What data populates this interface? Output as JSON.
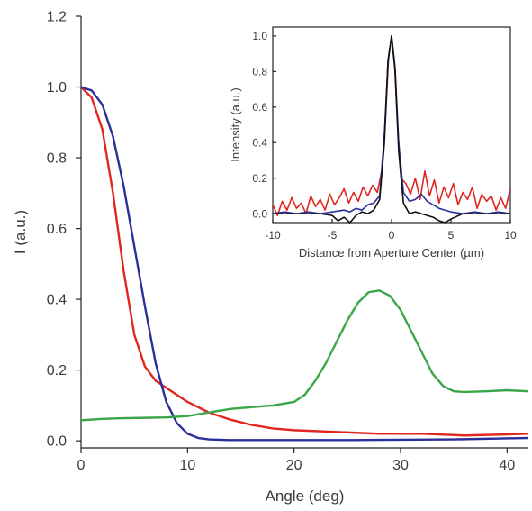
{
  "chart_data": [
    {
      "type": "line",
      "title": "",
      "xlabel": "Angle (deg)",
      "ylabel": "I (a.u.)",
      "xlim": [
        0,
        42
      ],
      "ylim": [
        -0.02,
        1.2
      ],
      "xticks": [
        "0",
        "10",
        "20",
        "30",
        "40"
      ],
      "xtick_values": [
        0,
        10,
        20,
        30,
        40
      ],
      "yticks": [
        "0.0",
        "0.2",
        "0.4",
        "0.6",
        "0.8",
        "1.0",
        "1.2"
      ],
      "ytick_values": [
        0,
        0.2,
        0.4,
        0.6,
        0.8,
        1.0,
        1.2
      ],
      "grid": false,
      "series": [
        {
          "color": "#e0261f",
          "x": [
            0,
            1,
            2,
            3,
            4,
            5,
            6,
            7,
            8,
            9,
            10,
            12,
            14,
            16,
            18,
            20,
            24,
            28,
            32,
            36,
            40,
            42
          ],
          "y": [
            1.0,
            0.97,
            0.88,
            0.7,
            0.48,
            0.3,
            0.21,
            0.17,
            0.15,
            0.13,
            0.11,
            0.08,
            0.06,
            0.045,
            0.035,
            0.03,
            0.025,
            0.02,
            0.02,
            0.015,
            0.018,
            0.02
          ]
        },
        {
          "color": "#2b2f9c",
          "x": [
            0,
            1,
            2,
            3,
            4,
            5,
            6,
            7,
            8,
            9,
            10,
            11,
            12,
            14,
            16,
            20,
            25,
            30,
            35,
            40,
            42
          ],
          "y": [
            1.0,
            0.99,
            0.95,
            0.86,
            0.72,
            0.55,
            0.38,
            0.22,
            0.11,
            0.05,
            0.02,
            0.008,
            0.004,
            0.002,
            0.002,
            0.002,
            0.002,
            0.003,
            0.004,
            0.007,
            0.008
          ]
        },
        {
          "color": "#3aa648",
          "x": [
            0,
            2,
            4,
            6,
            8,
            10,
            12,
            14,
            16,
            18,
            20,
            21,
            22,
            23,
            24,
            25,
            26,
            27,
            28,
            29,
            30,
            31,
            32,
            33,
            34,
            35,
            36,
            38,
            40,
            42
          ],
          "y": [
            0.058,
            0.062,
            0.064,
            0.065,
            0.066,
            0.07,
            0.08,
            0.09,
            0.095,
            0.1,
            0.11,
            0.13,
            0.17,
            0.22,
            0.28,
            0.34,
            0.39,
            0.42,
            0.425,
            0.41,
            0.37,
            0.31,
            0.25,
            0.19,
            0.155,
            0.14,
            0.138,
            0.14,
            0.143,
            0.14
          ]
        }
      ]
    },
    {
      "type": "line",
      "title": "",
      "xlabel": "Distance from Aperture Center (µm)",
      "ylabel": "Intensity (a.u.)",
      "xlim": [
        -10,
        10
      ],
      "ylim": [
        -0.05,
        1.05
      ],
      "xticks": [
        "-10",
        "-5",
        "0",
        "5",
        "10"
      ],
      "xtick_values": [
        -10,
        -5,
        0,
        5,
        10
      ],
      "yticks": [
        "0.0",
        "0.2",
        "0.4",
        "0.6",
        "0.8",
        "1.0"
      ],
      "ytick_values": [
        0,
        0.2,
        0.4,
        0.6,
        0.8,
        1.0
      ],
      "grid": false,
      "series": [
        {
          "color": "#e0261f",
          "x": [
            -10,
            -9.6,
            -9.2,
            -8.8,
            -8.4,
            -8.0,
            -7.6,
            -7.2,
            -6.8,
            -6.4,
            -6.0,
            -5.6,
            -5.2,
            -4.8,
            -4.4,
            -4.0,
            -3.6,
            -3.2,
            -2.8,
            -2.4,
            -2.0,
            -1.6,
            -1.2,
            -0.8,
            -0.5,
            -0.25,
            0,
            0.25,
            0.5,
            0.8,
            1.2,
            1.6,
            2.0,
            2.4,
            2.8,
            3.2,
            3.6,
            4.0,
            4.4,
            4.8,
            5.2,
            5.6,
            6.0,
            6.4,
            6.8,
            7.2,
            7.6,
            8.0,
            8.4,
            8.8,
            9.2,
            9.6,
            10
          ],
          "y": [
            0.05,
            -0.01,
            0.07,
            0.02,
            0.09,
            0.03,
            0.06,
            0.0,
            0.1,
            0.04,
            0.08,
            0.02,
            0.11,
            0.05,
            0.09,
            0.14,
            0.06,
            0.12,
            0.07,
            0.15,
            0.1,
            0.16,
            0.12,
            0.25,
            0.55,
            0.88,
            1.0,
            0.85,
            0.5,
            0.2,
            0.17,
            0.11,
            0.2,
            0.08,
            0.24,
            0.1,
            0.19,
            0.06,
            0.15,
            0.09,
            0.17,
            0.05,
            0.12,
            0.08,
            0.15,
            0.03,
            0.11,
            0.07,
            0.1,
            0.02,
            0.09,
            0.03,
            0.14
          ]
        },
        {
          "color": "#2b2f9c",
          "x": [
            -10,
            -9,
            -8,
            -7,
            -6,
            -5,
            -4,
            -3.5,
            -3,
            -2.5,
            -2,
            -1.5,
            -1,
            -0.6,
            -0.3,
            0,
            0.3,
            0.6,
            1,
            1.5,
            2,
            2.5,
            3,
            3.5,
            4,
            5,
            6,
            7,
            8,
            9,
            10
          ],
          "y": [
            0.0,
            0.01,
            0.0,
            0.01,
            0.0,
            0.01,
            0.02,
            0.01,
            0.03,
            0.02,
            0.05,
            0.06,
            0.1,
            0.45,
            0.85,
            1.0,
            0.82,
            0.4,
            0.12,
            0.07,
            0.08,
            0.11,
            0.07,
            0.05,
            0.03,
            0.01,
            0.0,
            0.01,
            0.0,
            0.01,
            0.0
          ]
        },
        {
          "color": "#111111",
          "x": [
            -10,
            -8,
            -6,
            -5,
            -4.5,
            -4,
            -3.5,
            -3,
            -2.5,
            -2,
            -1.5,
            -1,
            -0.6,
            -0.3,
            0,
            0.3,
            0.6,
            1,
            1.5,
            2,
            2.5,
            3,
            3.5,
            4,
            4.5,
            5,
            6,
            8,
            10
          ],
          "y": [
            0.0,
            0.0,
            0.0,
            -0.01,
            -0.04,
            -0.02,
            -0.05,
            -0.01,
            0.01,
            0.0,
            0.02,
            0.08,
            0.4,
            0.86,
            1.0,
            0.8,
            0.35,
            0.06,
            0.0,
            0.01,
            0.0,
            -0.01,
            -0.02,
            -0.04,
            -0.05,
            -0.03,
            0.0,
            0.0,
            0.0
          ]
        }
      ]
    }
  ]
}
